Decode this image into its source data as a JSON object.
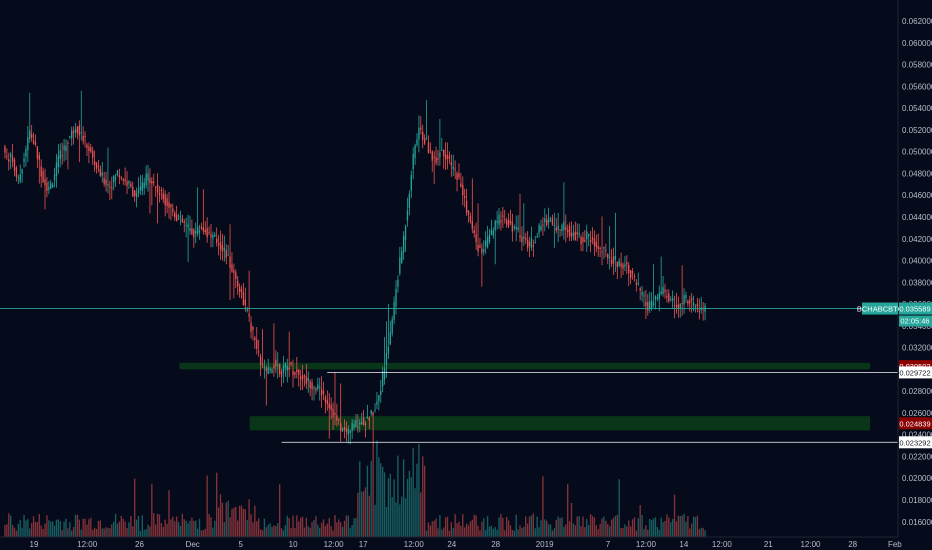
{
  "chart_data": {
    "type": "candlestick",
    "symbol": "BCHABCBTC",
    "last_price": "0.035589",
    "countdown": "02:05:46",
    "colors": {
      "background": "#060b1c",
      "up": "#26a69a",
      "down": "#ef5350",
      "price_line": "#26a69a",
      "zone": "#0b3d17",
      "zone_tag": "#8b0000",
      "support_line": "#d1d4dc"
    },
    "y_axis": {
      "min": 0.0146,
      "max": 0.0632,
      "scale": "linear",
      "ticks": [
        "0.062000",
        "0.060000",
        "0.058000",
        "0.056000",
        "0.054000",
        "0.052000",
        "0.050000",
        "0.048000",
        "0.046000",
        "0.044000",
        "0.042000",
        "0.040000",
        "0.038000",
        "0.036000",
        "0.034000",
        "0.032000",
        "0.030000",
        "0.028000",
        "0.026000",
        "0.024000",
        "0.022000",
        "0.020000",
        "0.018000",
        "0.016000"
      ]
    },
    "x_axis": {
      "ticks": [
        {
          "label": "19",
          "pos": 0.0
        },
        {
          "label": "12:00",
          "pos": 0.063
        },
        {
          "label": "26",
          "pos": 0.125
        },
        {
          "label": "Dec",
          "pos": 0.188
        },
        {
          "label": "5",
          "pos": 0.245
        },
        {
          "label": "10",
          "pos": 0.307
        },
        {
          "label": "12:00",
          "pos": 0.355
        },
        {
          "label": "17",
          "pos": 0.39
        },
        {
          "label": "12:00",
          "pos": 0.45
        },
        {
          "label": "24",
          "pos": 0.495
        },
        {
          "label": "28",
          "pos": 0.547
        },
        {
          "label": "2019",
          "pos": 0.605
        },
        {
          "label": "7",
          "pos": 0.68
        },
        {
          "label": "12:00",
          "pos": 0.725
        },
        {
          "label": "14",
          "pos": 0.77
        },
        {
          "label": "12:00",
          "pos": 0.815
        },
        {
          "label": "21",
          "pos": 0.87
        },
        {
          "label": "12:00",
          "pos": 0.92
        },
        {
          "label": "28",
          "pos": 0.97
        },
        {
          "label": "Feb",
          "pos": 1.02
        }
      ]
    },
    "price_path": [
      0.0505,
      0.0492,
      0.0498,
      0.0485,
      0.0472,
      0.0488,
      0.0503,
      0.0518,
      0.0509,
      0.0496,
      0.0482,
      0.0471,
      0.0465,
      0.0474,
      0.0486,
      0.0497,
      0.0503,
      0.0511,
      0.0517,
      0.0524,
      0.0519,
      0.0512,
      0.0506,
      0.0498,
      0.0489,
      0.0482,
      0.0476,
      0.0472,
      0.0469,
      0.0474,
      0.0481,
      0.0477,
      0.0473,
      0.0469,
      0.0463,
      0.0459,
      0.0466,
      0.0472,
      0.0478,
      0.0474,
      0.0467,
      0.0462,
      0.0458,
      0.0453,
      0.0448,
      0.0443,
      0.0438,
      0.0435,
      0.0431,
      0.0428,
      0.0425,
      0.0428,
      0.0431,
      0.0427,
      0.0424,
      0.0421,
      0.0418,
      0.0414,
      0.0409,
      0.0401,
      0.0392,
      0.0383,
      0.0374,
      0.0363,
      0.0351,
      0.0338,
      0.0326,
      0.0312,
      0.0302,
      0.0296,
      0.0299,
      0.0306,
      0.0303,
      0.0298,
      0.0301,
      0.0304,
      0.0299,
      0.0297,
      0.0294,
      0.0291,
      0.0289,
      0.0286,
      0.0284,
      0.0281,
      0.0277,
      0.0271,
      0.0264,
      0.0256,
      0.0249,
      0.0244,
      0.0242,
      0.0246,
      0.0249,
      0.0251,
      0.0253,
      0.0252,
      0.0256,
      0.0262,
      0.0271,
      0.0285,
      0.0302,
      0.0322,
      0.0346,
      0.0374,
      0.0398,
      0.0421,
      0.0449,
      0.0481,
      0.0506,
      0.0521,
      0.0514,
      0.0508,
      0.0499,
      0.0492,
      0.0496,
      0.0503,
      0.0497,
      0.0489,
      0.0484,
      0.0479,
      0.0468,
      0.0455,
      0.0441,
      0.0428,
      0.0417,
      0.0408,
      0.0411,
      0.0418,
      0.0425,
      0.0432,
      0.0438,
      0.0441,
      0.0437,
      0.0433,
      0.0429,
      0.0426,
      0.0422,
      0.0418,
      0.0414,
      0.0418,
      0.0425,
      0.0431,
      0.0436,
      0.0439,
      0.0434,
      0.0431,
      0.0429,
      0.0432,
      0.0429,
      0.0426,
      0.0423,
      0.0421,
      0.0419,
      0.0423,
      0.0419,
      0.0416,
      0.0412,
      0.0409,
      0.0406,
      0.0403,
      0.0401,
      0.0398,
      0.0396,
      0.0397,
      0.0393,
      0.0385,
      0.0378,
      0.0371,
      0.0363,
      0.0357,
      0.0359,
      0.0364,
      0.0369,
      0.0372,
      0.0368,
      0.0363,
      0.0359,
      0.0356,
      0.0362,
      0.0366,
      0.0363,
      0.0359,
      0.0356,
      0.0354,
      0.0356
    ],
    "annotations": {
      "zones": [
        {
          "label": "0.030502",
          "top": 0.0306,
          "bottom": 0.03,
          "x_start": 0.25
        },
        {
          "label": "0.024839",
          "top": 0.0257,
          "bottom": 0.0244,
          "x_start": 0.35
        }
      ],
      "support_lines": [
        {
          "label": "0.029722",
          "value": 0.02972,
          "x_start": 0.375
        },
        {
          "label": "0.023292",
          "value": 0.0233,
          "x_start": 0.31
        }
      ]
    }
  }
}
